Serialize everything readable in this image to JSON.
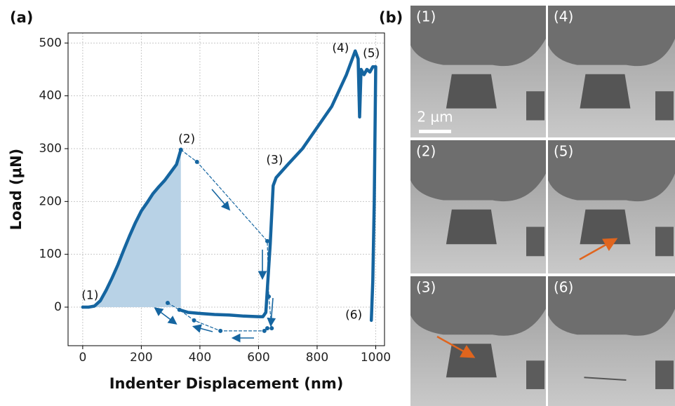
{
  "chart_data": {
    "type": "line",
    "panel_label": "(a)",
    "xlabel": "Indenter Displacement (nm)",
    "ylabel": "Load (μN)",
    "xlim": [
      -50,
      1030
    ],
    "ylim": [
      -73,
      519
    ],
    "xticks": [
      0,
      200,
      400,
      600,
      800,
      1000
    ],
    "yticks": [
      0,
      100,
      200,
      300,
      400,
      500
    ],
    "grid": true,
    "series": [
      {
        "color": "#1565a0",
        "style": "solid",
        "fill": "#b8d2e6",
        "x": [
          0,
          20,
          40,
          60,
          80,
          100,
          120,
          140,
          160,
          180,
          200,
          220,
          240,
          260,
          280,
          300,
          320,
          335
        ],
        "values": [
          0,
          0,
          2,
          12,
          32,
          55,
          80,
          108,
          135,
          160,
          182,
          198,
          215,
          228,
          240,
          255,
          270,
          298
        ]
      },
      {
        "color": "#1565a0",
        "style": "solid",
        "x": [
          330,
          360,
          400,
          450,
          500,
          550,
          600,
          615,
          625,
          640,
          650,
          660,
          700,
          750,
          800,
          850,
          900,
          920,
          930,
          940,
          945,
          950,
          960,
          970,
          980,
          990,
          1000,
          995,
          990,
          985
        ],
        "values": [
          -5,
          -10,
          -12,
          -14,
          -15,
          -17,
          -18,
          -18,
          -10,
          120,
          230,
          245,
          270,
          300,
          340,
          380,
          440,
          470,
          485,
          470,
          360,
          450,
          440,
          450,
          445,
          455,
          455,
          200,
          50,
          -25
        ]
      },
      {
        "color": "#1565a0",
        "style": "dashed",
        "x": [
          335,
          390,
          630,
          635,
          645,
          null,
          290,
          330,
          380,
          470,
          620,
          630
        ],
        "values": [
          298,
          275,
          125,
          20,
          -40,
          null,
          8,
          -5,
          -25,
          -45,
          -45,
          -40
        ]
      }
    ],
    "annotations": [
      {
        "text": "(1)",
        "x": 25,
        "y": 22
      },
      {
        "text": "(2)",
        "x": 355,
        "y": 318
      },
      {
        "text": "(3)",
        "x": 655,
        "y": 278
      },
      {
        "text": "(4)",
        "x": 880,
        "y": 490
      },
      {
        "text": "(5)",
        "x": 985,
        "y": 480
      },
      {
        "text": "(6)",
        "x": 925,
        "y": -15
      }
    ]
  },
  "images": {
    "panel_label": "(b)",
    "scale_bar": "2 µm",
    "panels": [
      "(1)",
      "(2)",
      "(3)",
      "(4)",
      "(5)",
      "(6)"
    ]
  }
}
